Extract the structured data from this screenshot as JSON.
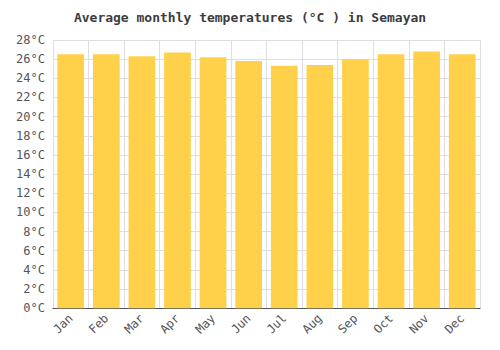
{
  "chart_data": {
    "type": "bar",
    "title": "Average monthly temperatures (°C ) in Semayan",
    "categories": [
      "Jan",
      "Feb",
      "Mar",
      "Apr",
      "May",
      "Jun",
      "Jul",
      "Aug",
      "Sep",
      "Oct",
      "Nov",
      "Dec"
    ],
    "values": [
      26.5,
      26.5,
      26.3,
      26.7,
      26.2,
      25.8,
      25.3,
      25.4,
      26.0,
      26.5,
      26.8,
      26.5
    ],
    "color": "#FFD04A",
    "ylim": [
      0,
      28
    ],
    "yticks": [
      {
        "value": 0,
        "label": "0°C"
      },
      {
        "value": 2,
        "label": "2°C"
      },
      {
        "value": 4,
        "label": "4°C"
      },
      {
        "value": 6,
        "label": "6°C"
      },
      {
        "value": 8,
        "label": "8°C"
      },
      {
        "value": 10,
        "label": "10°C"
      },
      {
        "value": 12,
        "label": "12°C"
      },
      {
        "value": 14,
        "label": "14°C"
      },
      {
        "value": 16,
        "label": "16°C"
      },
      {
        "value": 18,
        "label": "18°C"
      },
      {
        "value": 20,
        "label": "20°C"
      },
      {
        "value": 22,
        "label": "22°C"
      },
      {
        "value": 24,
        "label": "24°C"
      },
      {
        "value": 26,
        "label": "26°C"
      },
      {
        "value": 28,
        "label": "28°C"
      }
    ],
    "grid": true
  }
}
